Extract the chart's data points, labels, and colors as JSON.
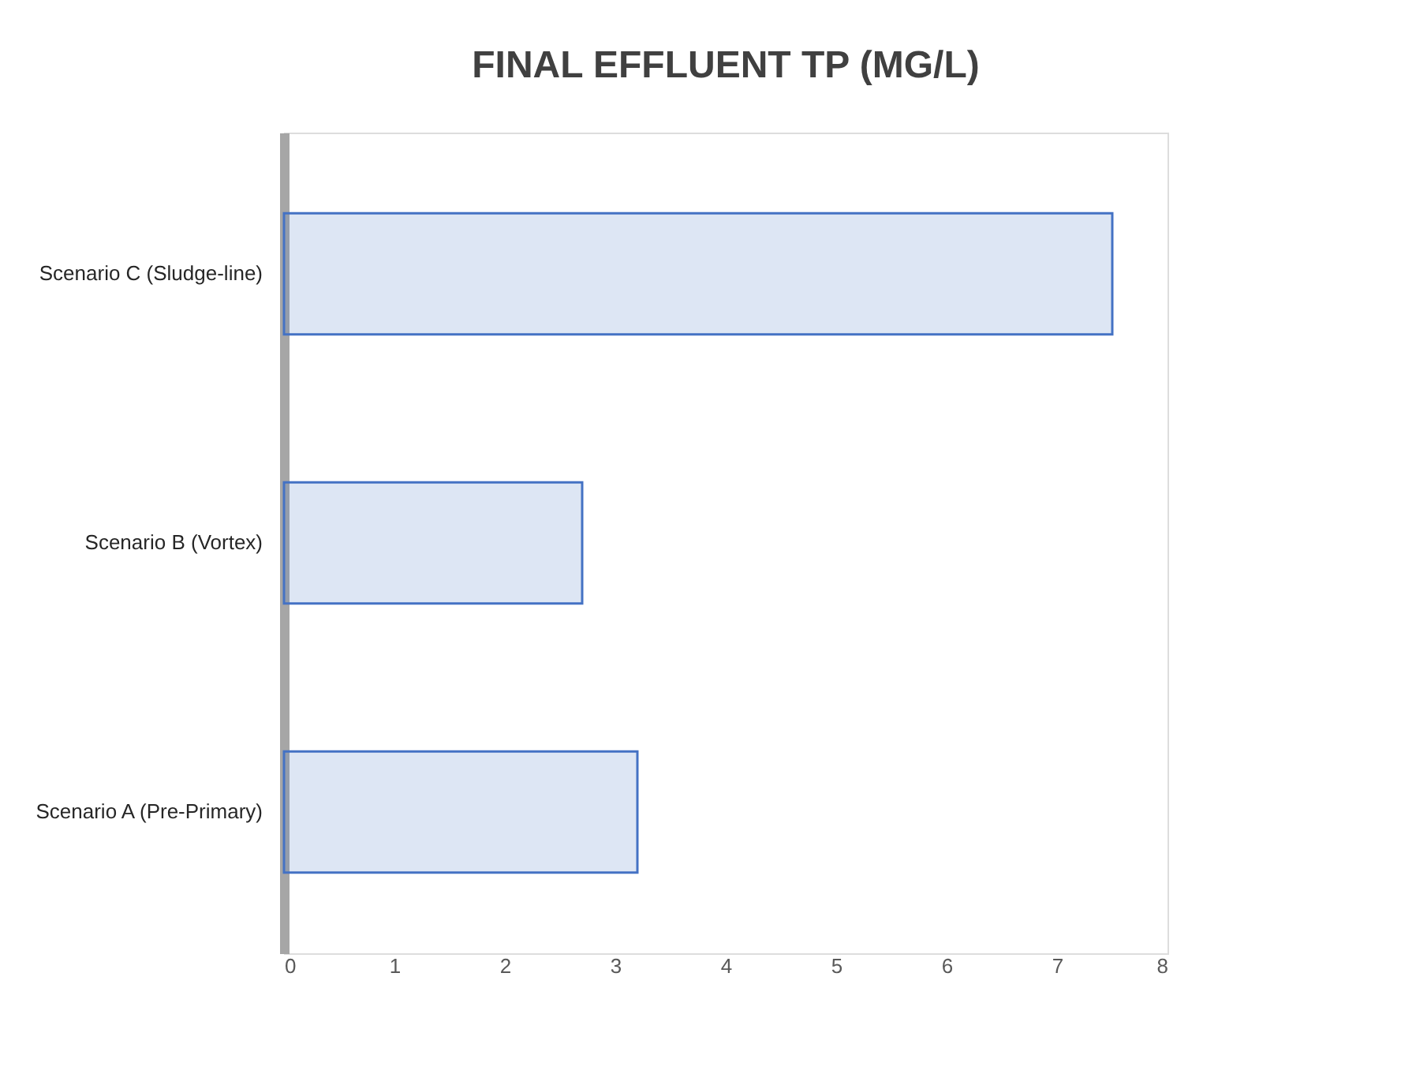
{
  "chart_data": {
    "type": "bar",
    "title": "FINAL EFFLUENT TP (MG/L)",
    "orientation": "horizontal",
    "categories": [
      "Scenario C (Sludge-line)",
      "Scenario B (Vortex)",
      "Scenario A (Pre-Primary)"
    ],
    "values": [
      7.5,
      2.7,
      3.2
    ],
    "color": "#4472c4",
    "xlim": [
      0,
      8
    ],
    "xticks": [
      0,
      1,
      2,
      3,
      4,
      5,
      6,
      7,
      8
    ],
    "grid": false
  }
}
